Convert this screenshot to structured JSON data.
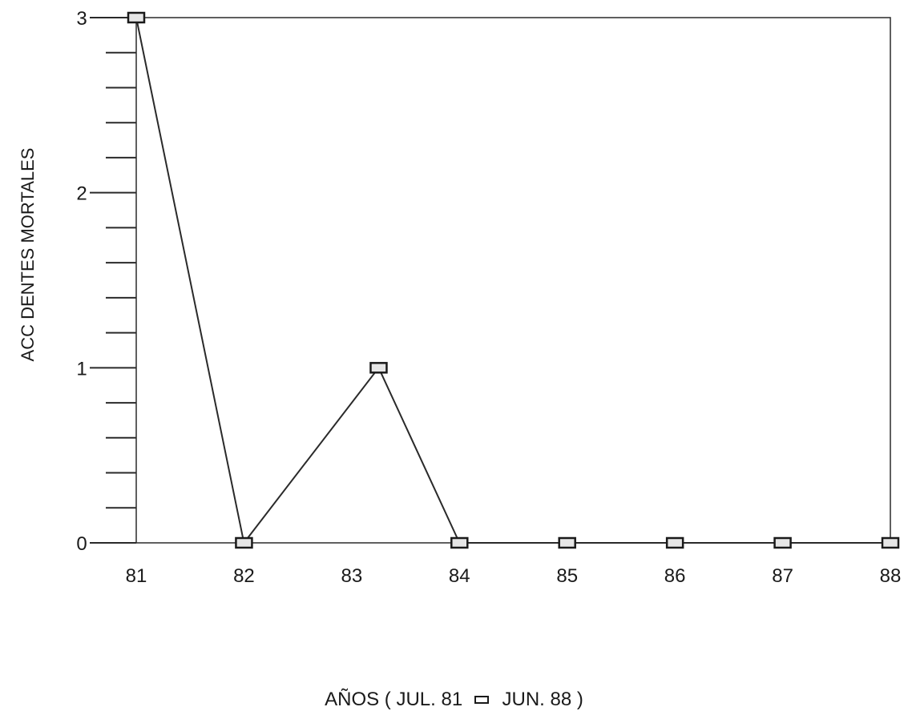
{
  "chart_data": {
    "type": "line",
    "title": "",
    "ylabel": "ACC DENTES MORTALES",
    "xlabel": {
      "prefix": "AÑOS ( JUL. 81",
      "suffix": "JUN. 88 )"
    },
    "x_ticks": [
      "81",
      "82",
      "83",
      "84",
      "85",
      "86",
      "87",
      "88"
    ],
    "y_ticks": [
      "0",
      "1",
      "2",
      "3"
    ],
    "ylim": [
      0,
      3
    ],
    "xlim": [
      81,
      88
    ],
    "grid": false,
    "legend": "none",
    "series": [
      {
        "marker": "square",
        "x": [
          81,
          82,
          83.25,
          84,
          85,
          86,
          87,
          88
        ],
        "values": [
          3,
          0,
          1,
          0,
          0,
          0,
          0,
          0
        ]
      }
    ],
    "colors": {
      "line": "#2a2a2a",
      "marker_fill": "#e6e6e6",
      "marker_stroke": "#1a1a1a"
    }
  }
}
